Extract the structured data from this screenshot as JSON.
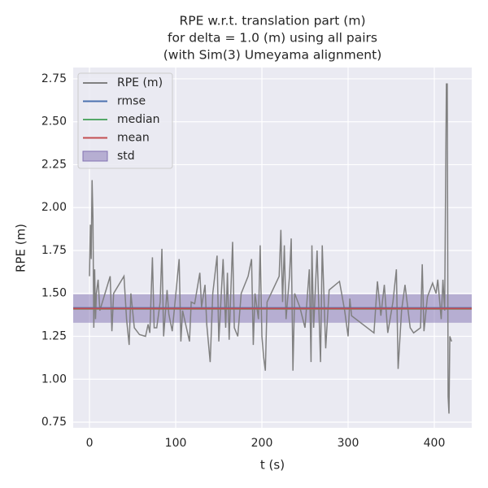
{
  "chart_data": {
    "type": "line",
    "title": [
      "RPE w.r.t. translation part (m)",
      "for delta = 1.0 (m) using all pairs",
      "(with Sim(3) Umeyama alignment)"
    ],
    "xlabel": "t (s)",
    "ylabel": "RPE (m)",
    "xlim": [
      -18.9,
      443.4
    ],
    "ylim": [
      0.717,
      2.816
    ],
    "xticks": [
      0,
      100,
      200,
      300,
      400
    ],
    "yticks": [
      0.75,
      {
        "value": 1,
        "label": "1.00"
      },
      1.25,
      {
        "value": 1.5,
        "label": "1.50"
      },
      1.75,
      {
        "value": 2,
        "label": "2.00"
      },
      2.25,
      {
        "value": 2.5,
        "label": "2.50"
      },
      2.75
    ],
    "grid": true,
    "legend": "upper left",
    "series": [
      {
        "name": "RPE (m)",
        "color": "#808080",
        "x": [
          0,
          1,
          2,
          3,
          4,
          5,
          6,
          7,
          8,
          10,
          12,
          24,
          26,
          28,
          40,
          43,
          46,
          48,
          52,
          58,
          65,
          68,
          70,
          73,
          75,
          78,
          82,
          84,
          86,
          90,
          92,
          96,
          104,
          106,
          108,
          116,
          118,
          122,
          128,
          130,
          134,
          136,
          140,
          143,
          148,
          150,
          155,
          158,
          160,
          162,
          166,
          168,
          172,
          176,
          184,
          188,
          190,
          192,
          196,
          198,
          200,
          202,
          204,
          206,
          220,
          222,
          224,
          226,
          228,
          232,
          234,
          236,
          238,
          244,
          250,
          255,
          257,
          258,
          260,
          264,
          268,
          270,
          274,
          278,
          290,
          296,
          300,
          302,
          304,
          330,
          334,
          338,
          342,
          346,
          352,
          356,
          358,
          362,
          366,
          372,
          376,
          384,
          386,
          388,
          392,
          398,
          402,
          404,
          408,
          410,
          412,
          414,
          415,
          416,
          417,
          418,
          420
        ],
        "values": [
          1.6,
          1.9,
          1.7,
          2.16,
          1.94,
          1.3,
          1.64,
          1.35,
          1.5,
          1.58,
          1.4,
          1.6,
          1.28,
          1.5,
          1.6,
          1.35,
          1.2,
          1.5,
          1.3,
          1.26,
          1.25,
          1.32,
          1.27,
          1.71,
          1.3,
          1.3,
          1.45,
          1.76,
          1.25,
          1.52,
          1.38,
          1.28,
          1.7,
          1.22,
          1.4,
          1.22,
          1.45,
          1.44,
          1.62,
          1.42,
          1.55,
          1.32,
          1.1,
          1.5,
          1.72,
          1.22,
          1.7,
          1.3,
          1.62,
          1.23,
          1.8,
          1.3,
          1.25,
          1.5,
          1.6,
          1.7,
          1.2,
          1.5,
          1.35,
          1.78,
          1.25,
          1.13,
          1.05,
          1.45,
          1.6,
          1.87,
          1.45,
          1.78,
          1.35,
          1.6,
          1.82,
          1.05,
          1.5,
          1.42,
          1.3,
          1.64,
          1.1,
          1.78,
          1.3,
          1.75,
          1.1,
          1.78,
          1.18,
          1.52,
          1.57,
          1.4,
          1.25,
          1.47,
          1.37,
          1.27,
          1.57,
          1.37,
          1.55,
          1.27,
          1.45,
          1.64,
          1.06,
          1.4,
          1.55,
          1.3,
          1.27,
          1.3,
          1.67,
          1.28,
          1.48,
          1.56,
          1.5,
          1.58,
          1.35,
          1.58,
          1.4,
          2.72,
          2.72,
          0.9,
          0.8,
          1.25,
          1.22
        ]
      }
    ],
    "stats": [
      {
        "name": "rmse",
        "color": "#4c72b0",
        "value": 1.415
      },
      {
        "name": "median",
        "color": "#55a868",
        "value": 1.41
      },
      {
        "name": "mean",
        "color": "#c44e52",
        "value": 1.412
      },
      {
        "name": "std",
        "color": "#8172b2",
        "value": 0.083
      }
    ]
  }
}
